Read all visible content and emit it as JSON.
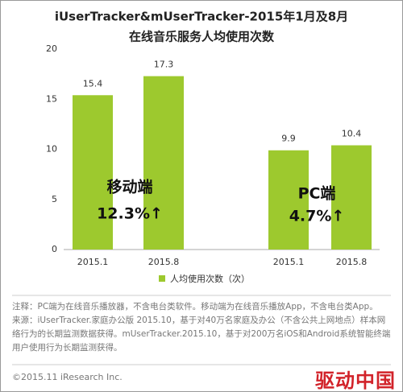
{
  "chart_data": {
    "type": "bar",
    "title": "iUserTracker&mUserTracker-2015年1月及8月",
    "subtitle": "在线音乐服务人均使用次数",
    "categories": [
      "2015.1",
      "2015.8",
      "2015.1",
      "2015.8"
    ],
    "series": [
      {
        "name": "人均使用次数（次）",
        "color": "#9dc92e",
        "values": [
          15.4,
          17.3,
          9.9,
          10.4
        ]
      }
    ],
    "ylim": [
      0,
      20
    ],
    "yticks": [
      0,
      5,
      10,
      15,
      20
    ],
    "grid": false,
    "annotations": [
      "移动端",
      "12.3%↑",
      "PC端",
      "4.7%↑"
    ],
    "notes": [
      "注释：PC端为在线音乐播放器，不含电台类软件。移动端为在线音乐播放App，不含电台类App。",
      "来源：iUserTracker.家庭办公版 2015.10，基于对40万名家庭及办公（不含公共上网地点）样本网络行为的长期监测数据获得。mUserTracker.2015.10，基于对200万名iOS和Android系统智能终端用户使用行为长期监测获得。"
    ],
    "copyright": "©2015.11 iResearch Inc.",
    "watermark": "驱动中国"
  }
}
